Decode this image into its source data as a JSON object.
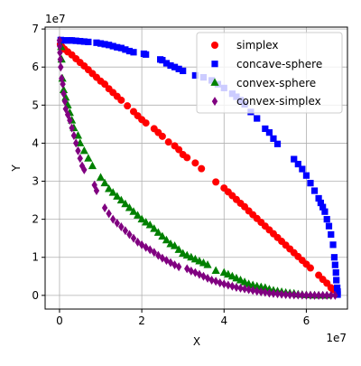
{
  "chart_data": {
    "type": "scatter",
    "xlabel": "X",
    "ylabel": "Y",
    "x_offset_label": "1e7",
    "y_offset_label": "1e7",
    "scale_factor": 10000000,
    "xlim": [
      -3.5,
      70
    ],
    "ylim": [
      -3.6,
      70.5
    ],
    "xticks": [
      0,
      20,
      40,
      60
    ],
    "xticklabels": [
      "0",
      "2",
      "4",
      "6"
    ],
    "yticks": [
      0,
      10,
      20,
      30,
      40,
      50,
      60,
      70
    ],
    "yticklabels": [
      "0",
      "1",
      "2",
      "3",
      "4",
      "5",
      "6",
      "7"
    ],
    "grid": true,
    "legend_position": "top-right",
    "series": [
      {
        "name": "simplex",
        "color": "#ff0000",
        "marker": "circle",
        "points": [
          [
            0.2,
            66
          ],
          [
            0.6,
            65.3
          ],
          [
            1.2,
            64.7
          ],
          [
            2.0,
            64.0
          ],
          [
            3.0,
            63.2
          ],
          [
            4.0,
            62.2
          ],
          [
            5.0,
            61.2
          ],
          [
            6.0,
            60.3
          ],
          [
            7.0,
            59.3
          ],
          [
            8.0,
            58.3
          ],
          [
            9.0,
            57.3
          ],
          [
            10.0,
            56.3
          ],
          [
            11.0,
            55.5
          ],
          [
            12.0,
            54.3
          ],
          [
            13.0,
            53.3
          ],
          [
            14.0,
            52.3
          ],
          [
            15.0,
            51.3
          ],
          [
            16.5,
            49.8
          ],
          [
            18.0,
            48.3
          ],
          [
            19.0,
            47.2
          ],
          [
            20.0,
            46.2
          ],
          [
            21.0,
            45.3
          ],
          [
            23.0,
            43.8
          ],
          [
            24.0,
            42.8
          ],
          [
            25.0,
            41.8
          ],
          [
            26.5,
            40.3
          ],
          [
            28.0,
            39.3
          ],
          [
            29.0,
            38.3
          ],
          [
            30.0,
            37.0
          ],
          [
            31.0,
            36.2
          ],
          [
            33.0,
            34.8
          ],
          [
            34.5,
            33.3
          ],
          [
            38.0,
            29.8
          ],
          [
            40.0,
            28.2
          ],
          [
            41.0,
            27.2
          ],
          [
            42.0,
            26.2
          ],
          [
            43.0,
            25.2
          ],
          [
            44.0,
            24.2
          ],
          [
            45.0,
            23.3
          ],
          [
            46.0,
            22.2
          ],
          [
            47.0,
            21.2
          ],
          [
            48.0,
            20.2
          ],
          [
            49.0,
            19.2
          ],
          [
            50.0,
            18.2
          ],
          [
            51.0,
            17.2
          ],
          [
            52.0,
            16.2
          ],
          [
            53.0,
            15.2
          ],
          [
            54.0,
            14.2
          ],
          [
            55.0,
            13.2
          ],
          [
            56.0,
            12.2
          ],
          [
            57.0,
            11.2
          ],
          [
            58.0,
            10.2
          ],
          [
            59.0,
            9.2
          ],
          [
            60.0,
            8.2
          ],
          [
            61.0,
            7.2
          ],
          [
            63.0,
            5.3
          ],
          [
            64.0,
            4.2
          ],
          [
            65.0,
            3.2
          ],
          [
            66.0,
            2.0
          ],
          [
            66.5,
            1.5
          ]
        ]
      },
      {
        "name": "concave-sphere",
        "color": "#0000ff",
        "marker": "square",
        "points": [
          [
            0.3,
            67.1
          ],
          [
            1.0,
            67.0
          ],
          [
            1.8,
            67.0
          ],
          [
            2.5,
            67.0
          ],
          [
            3.0,
            67.0
          ],
          [
            4.0,
            66.9
          ],
          [
            5.0,
            66.8
          ],
          [
            6.0,
            66.7
          ],
          [
            7.0,
            66.6
          ],
          [
            9.0,
            66.4
          ],
          [
            10.0,
            66.2
          ],
          [
            11.0,
            66.0
          ],
          [
            12.0,
            65.8
          ],
          [
            13.0,
            65.5
          ],
          [
            14.0,
            65.2
          ],
          [
            15.0,
            65.0
          ],
          [
            16.0,
            64.6
          ],
          [
            17.0,
            64.2
          ],
          [
            18.0,
            63.9
          ],
          [
            20.5,
            63.5
          ],
          [
            21.0,
            63.3
          ],
          [
            24.5,
            62.0
          ],
          [
            25.0,
            61.8
          ],
          [
            26.0,
            61.0
          ],
          [
            27.0,
            60.4
          ],
          [
            28.0,
            60.0
          ],
          [
            29.0,
            59.5
          ],
          [
            30.0,
            59.0
          ],
          [
            33.0,
            57.8
          ],
          [
            35.0,
            57.3
          ],
          [
            37.0,
            56.5
          ],
          [
            38.5,
            55.5
          ],
          [
            40.0,
            54.5
          ],
          [
            42.0,
            53.0
          ],
          [
            43.0,
            52.2
          ],
          [
            44.0,
            51.3
          ],
          [
            45.0,
            50.2
          ],
          [
            46.5,
            48.2
          ],
          [
            48.0,
            46.5
          ],
          [
            50.0,
            43.8
          ],
          [
            51.0,
            42.8
          ],
          [
            52.0,
            41.2
          ],
          [
            53.0,
            39.8
          ],
          [
            57.0,
            35.8
          ],
          [
            58.0,
            34.5
          ],
          [
            59.0,
            33.2
          ],
          [
            60.0,
            31.5
          ],
          [
            61.0,
            29.5
          ],
          [
            62.0,
            27.5
          ],
          [
            63.0,
            25.5
          ],
          [
            63.5,
            24.3
          ],
          [
            64.0,
            23.2
          ],
          [
            64.5,
            22.0
          ],
          [
            65.0,
            20.0
          ],
          [
            65.5,
            18.2
          ],
          [
            66.0,
            16.0
          ],
          [
            66.5,
            13.3
          ],
          [
            66.8,
            10.0
          ],
          [
            67.0,
            8.0
          ],
          [
            67.2,
            6.0
          ],
          [
            67.3,
            4.0
          ],
          [
            67.5,
            2.0
          ],
          [
            67.6,
            1.0
          ],
          [
            67.6,
            0.2
          ]
        ]
      },
      {
        "name": "convex-sphere",
        "color": "#008000",
        "marker": "triangle",
        "points": [
          [
            0.4,
            65.3
          ],
          [
            0.5,
            62.0
          ],
          [
            0.7,
            57.0
          ],
          [
            1.0,
            54.0
          ],
          [
            1.5,
            52.0
          ],
          [
            2.0,
            50.0
          ],
          [
            2.5,
            48.0
          ],
          [
            3.0,
            46.0
          ],
          [
            3.5,
            44.0
          ],
          [
            4.5,
            42.0
          ],
          [
            5.0,
            40.0
          ],
          [
            6.0,
            38.0
          ],
          [
            7.0,
            36.0
          ],
          [
            8.0,
            34.0
          ],
          [
            10.0,
            31.0
          ],
          [
            11.0,
            29.5
          ],
          [
            12.0,
            28.0
          ],
          [
            13.0,
            27.0
          ],
          [
            14.0,
            26.0
          ],
          [
            15.0,
            25.0
          ],
          [
            16.0,
            24.0
          ],
          [
            17.0,
            23.0
          ],
          [
            18.0,
            22.0
          ],
          [
            19.0,
            21.0
          ],
          [
            20.0,
            20.0
          ],
          [
            21.0,
            19.2
          ],
          [
            22.0,
            18.5
          ],
          [
            23.0,
            17.5
          ],
          [
            24.0,
            16.5
          ],
          [
            25.0,
            15.5
          ],
          [
            26.0,
            14.5
          ],
          [
            27.0,
            13.5
          ],
          [
            28.0,
            13.0
          ],
          [
            29.0,
            12.0
          ],
          [
            30.0,
            11.0
          ],
          [
            31.0,
            10.5
          ],
          [
            32.0,
            10.0
          ],
          [
            33.0,
            9.5
          ],
          [
            34.0,
            9.0
          ],
          [
            35.0,
            8.5
          ],
          [
            36.0,
            8.0
          ],
          [
            38.0,
            6.5
          ],
          [
            40.0,
            6.0
          ],
          [
            41.0,
            5.5
          ],
          [
            42.0,
            5.0
          ],
          [
            43.0,
            4.5
          ],
          [
            44.0,
            4.0
          ],
          [
            45.0,
            3.5
          ],
          [
            46.0,
            3.0
          ],
          [
            47.0,
            2.7
          ],
          [
            48.0,
            2.4
          ],
          [
            49.0,
            2.2
          ],
          [
            50.0,
            2.0
          ],
          [
            51.0,
            1.6
          ],
          [
            52.0,
            1.3
          ],
          [
            53.0,
            1.1
          ],
          [
            54.0,
            0.9
          ],
          [
            55.0,
            0.7
          ],
          [
            56.0,
            0.6
          ],
          [
            57.0,
            0.5
          ],
          [
            58.0,
            0.3
          ],
          [
            59.0,
            0.2
          ],
          [
            60.0,
            0.1
          ],
          [
            61.0,
            0.05
          ],
          [
            62.0,
            0.02
          ],
          [
            63.0,
            0.01
          ],
          [
            64.0,
            0.0
          ],
          [
            65.0,
            0.0
          ]
        ]
      },
      {
        "name": "convex-simplex",
        "color": "#800080",
        "marker": "diamond",
        "points": [
          [
            0.0,
            67.0
          ],
          [
            0.05,
            65.5
          ],
          [
            0.1,
            63.8
          ],
          [
            0.2,
            62.0
          ],
          [
            0.3,
            60.0
          ],
          [
            0.5,
            57.0
          ],
          [
            0.8,
            55.5
          ],
          [
            1.0,
            53.0
          ],
          [
            1.3,
            51.0
          ],
          [
            1.5,
            49.0
          ],
          [
            2.0,
            47.5
          ],
          [
            2.5,
            46.0
          ],
          [
            3.0,
            44.0
          ],
          [
            3.5,
            42.0
          ],
          [
            4.0,
            40.0
          ],
          [
            4.5,
            38.0
          ],
          [
            5.0,
            36.0
          ],
          [
            5.5,
            34.0
          ],
          [
            6.0,
            33.0
          ],
          [
            8.5,
            29.0
          ],
          [
            9.0,
            27.5
          ],
          [
            11.0,
            23.0
          ],
          [
            12.0,
            21.5
          ],
          [
            13.0,
            20.0
          ],
          [
            14.0,
            19.0
          ],
          [
            15.0,
            18.0
          ],
          [
            16.0,
            17.0
          ],
          [
            17.0,
            16.0
          ],
          [
            18.0,
            15.0
          ],
          [
            19.0,
            14.0
          ],
          [
            20.0,
            13.3
          ],
          [
            21.0,
            12.6
          ],
          [
            22.0,
            12.0
          ],
          [
            23.0,
            11.3
          ],
          [
            24.0,
            10.5
          ],
          [
            25.0,
            9.8
          ],
          [
            26.0,
            9.2
          ],
          [
            27.0,
            8.6
          ],
          [
            28.0,
            8.0
          ],
          [
            29.0,
            7.5
          ],
          [
            31.0,
            7.0
          ],
          [
            32.0,
            6.4
          ],
          [
            33.0,
            6.0
          ],
          [
            34.0,
            5.5
          ],
          [
            35.0,
            5.0
          ],
          [
            36.0,
            4.5
          ],
          [
            37.0,
            4.0
          ],
          [
            38.0,
            3.7
          ],
          [
            39.0,
            3.3
          ],
          [
            40.0,
            3.0
          ],
          [
            41.0,
            2.7
          ],
          [
            42.0,
            2.4
          ],
          [
            43.0,
            2.1
          ],
          [
            44.0,
            1.9
          ],
          [
            45.0,
            1.7
          ],
          [
            46.0,
            1.5
          ],
          [
            47.0,
            1.3
          ],
          [
            48.0,
            1.1
          ],
          [
            49.0,
            0.9
          ],
          [
            50.0,
            0.8
          ],
          [
            51.0,
            0.6
          ],
          [
            52.0,
            0.5
          ],
          [
            53.0,
            0.4
          ],
          [
            54.0,
            0.3
          ],
          [
            55.0,
            0.2
          ],
          [
            56.0,
            0.15
          ],
          [
            57.0,
            0.1
          ],
          [
            58.0,
            0.08
          ],
          [
            59.0,
            0.05
          ],
          [
            60.0,
            0.02
          ],
          [
            61.0,
            0.01
          ],
          [
            62.0,
            0.0
          ],
          [
            63.0,
            0.0
          ],
          [
            64.0,
            0.0
          ],
          [
            65.0,
            0.0
          ],
          [
            66.0,
            0.0
          ],
          [
            67.0,
            0.0
          ]
        ]
      }
    ]
  }
}
